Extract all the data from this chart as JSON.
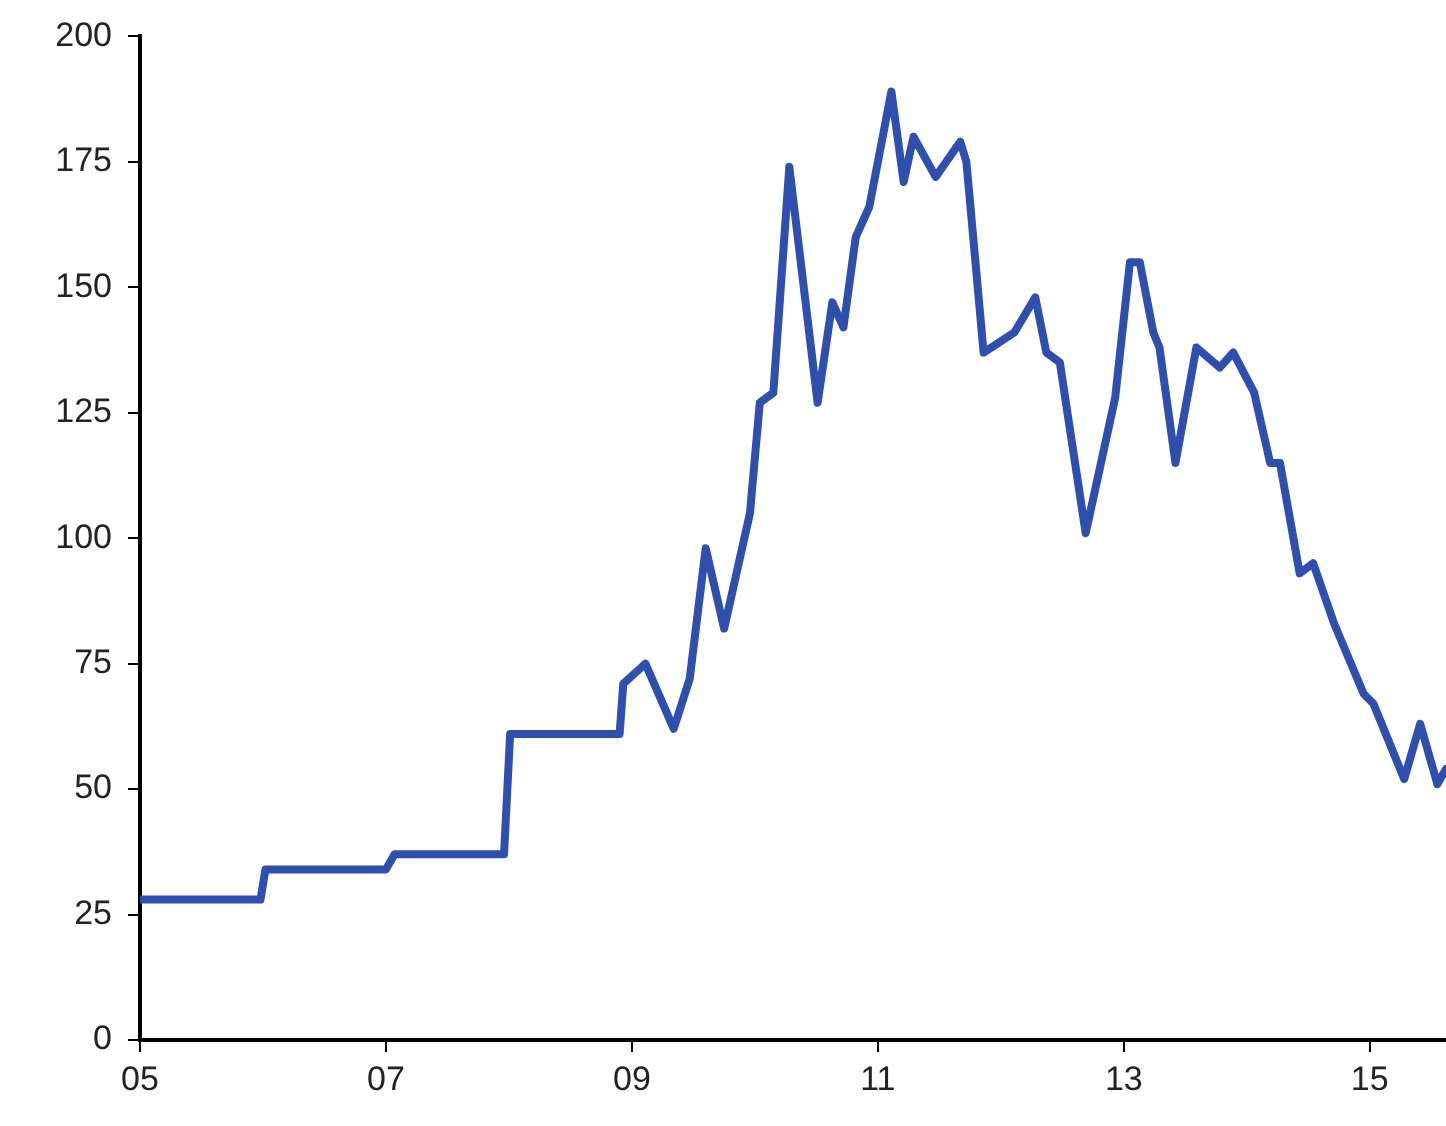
{
  "chart_data": {
    "type": "line",
    "x": [
      2005.0,
      2005.98,
      2006.02,
      2007.0,
      2007.07,
      2007.96,
      2008.01,
      2008.9,
      2008.93,
      2009.11,
      2009.34,
      2009.47,
      2009.6,
      2009.75,
      2009.96,
      2010.04,
      2010.15,
      2010.28,
      2010.51,
      2010.63,
      2010.72,
      2010.82,
      2010.93,
      2011.11,
      2011.21,
      2011.29,
      2011.47,
      2011.67,
      2011.72,
      2011.86,
      2012.11,
      2012.28,
      2012.37,
      2012.48,
      2012.69,
      2012.93,
      2013.05,
      2013.13,
      2013.24,
      2013.29,
      2013.42,
      2013.59,
      2013.78,
      2013.89,
      2014.06,
      2014.19,
      2014.27,
      2014.43,
      2014.54,
      2014.71,
      2014.95,
      2015.03,
      2015.28,
      2015.41,
      2015.55,
      2015.62
    ],
    "series": [
      {
        "color": "#2f4fae",
        "values": [
          28,
          28,
          34,
          34,
          37,
          37,
          61,
          61,
          71,
          75,
          62,
          72,
          98,
          82,
          105,
          127,
          129,
          174,
          127,
          147,
          142,
          160,
          166,
          189,
          171,
          180,
          172,
          179,
          175,
          137,
          141,
          148,
          137,
          135,
          101,
          128,
          155,
          155,
          141,
          138,
          115,
          138,
          134,
          137,
          129,
          115,
          115,
          93,
          95,
          83,
          69,
          67,
          52,
          63,
          51,
          54
        ]
      }
    ],
    "xlim": [
      2005,
      2015.62
    ],
    "xticks": [
      {
        "value": 2005,
        "label": "05"
      },
      {
        "value": 2007,
        "label": "07"
      },
      {
        "value": 2009,
        "label": "09"
      },
      {
        "value": 2011,
        "label": "11"
      },
      {
        "value": 2013,
        "label": "13"
      },
      {
        "value": 2015,
        "label": "15"
      }
    ],
    "ylim": [
      0,
      200
    ],
    "yticks": [
      0,
      25,
      50,
      75,
      100,
      125,
      150,
      175,
      200
    ]
  }
}
